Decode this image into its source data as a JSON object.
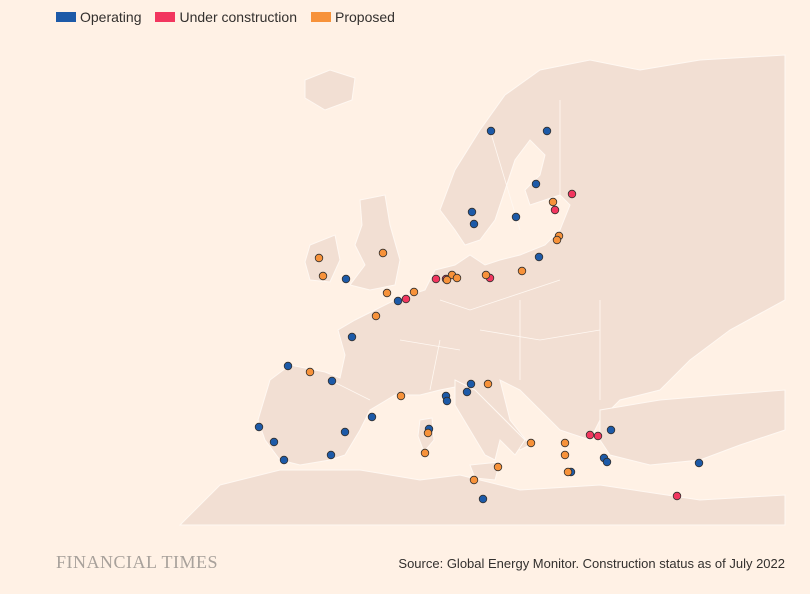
{
  "legend": {
    "items": [
      {
        "label": "Operating",
        "color": "#1d5aa8"
      },
      {
        "label": "Under construction",
        "color": "#f2365f"
      },
      {
        "label": "Proposed",
        "color": "#f7923a"
      }
    ]
  },
  "footer": {
    "logo": "FINANCIAL TIMES",
    "source": "Source: Global Energy Monitor. Construction status as of July 2022"
  }
}
